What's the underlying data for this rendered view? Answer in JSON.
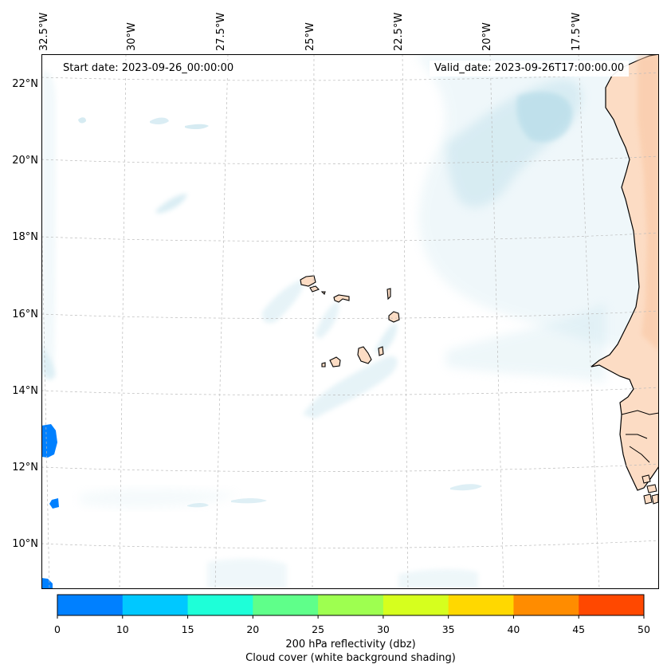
{
  "map": {
    "start_date": "Start date: 2023-09-26_00:00:00",
    "valid_date": "Valid_date: 2023-09-26T17:00:00.00",
    "lon_labels": [
      "32.5°W",
      "30°W",
      "27.5°W",
      "25°W",
      "22.5°W",
      "20°W",
      "17.5°W"
    ],
    "lat_labels": [
      "22°N",
      "20°N",
      "18°N",
      "16°N",
      "14°N",
      "12°N",
      "10°N"
    ],
    "land_color": "#fcdcc4",
    "cloud_color": "#add8e6"
  },
  "colorbar": {
    "ticks": [
      "0",
      "10",
      "15",
      "20",
      "25",
      "30",
      "35",
      "40",
      "45",
      "50"
    ],
    "colors": [
      "#0080ff",
      "#00c8ff",
      "#1effd8",
      "#5fff8a",
      "#9eff50",
      "#d6ff1e",
      "#ffd800",
      "#ff8c00",
      "#ff4800"
    ],
    "label_line1": "200 hPa reflectivity (dbz)",
    "label_line2": "Cloud cover (white background shading)"
  }
}
